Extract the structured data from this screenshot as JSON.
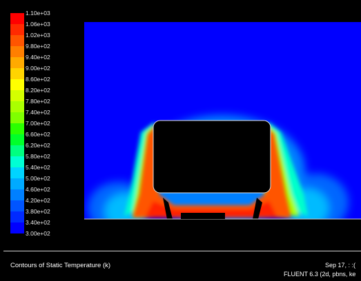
{
  "legend": {
    "ticks": [
      "1.10e+03",
      "1.06e+03",
      "1.02e+03",
      "9.80e+02",
      "9.40e+02",
      "9.00e+02",
      "8.60e+02",
      "8.20e+02",
      "7.80e+02",
      "7.40e+02",
      "7.00e+02",
      "6.60e+02",
      "6.20e+02",
      "5.80e+02",
      "5.40e+02",
      "5.00e+02",
      "4.60e+02",
      "4.20e+02",
      "3.80e+02",
      "3.40e+02",
      "3.00e+02"
    ],
    "colors": [
      "#ff0000",
      "#ff2a00",
      "#ff5500",
      "#ff7f00",
      "#ffaa00",
      "#ffd400",
      "#ffff00",
      "#d4ff00",
      "#aaff00",
      "#7fff00",
      "#2aff00",
      "#00ff2a",
      "#00ff80",
      "#00ffd4",
      "#00d4ff",
      "#00aaff",
      "#0080ff",
      "#0055ff",
      "#002aff",
      "#0000ff"
    ]
  },
  "footer": {
    "caption": "Contours of Static Temperature (k)",
    "date": "Sep 17, : :(",
    "version": "FLUENT 6.3 (2d, pbns, ke"
  }
}
